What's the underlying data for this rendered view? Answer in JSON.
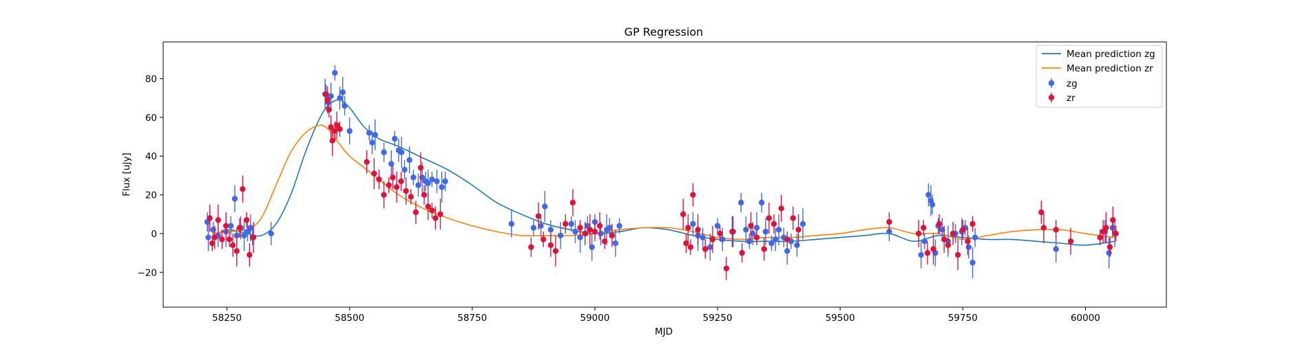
{
  "chart_data": {
    "type": "scatter",
    "title": "GP Regression",
    "xlabel": "MJD",
    "ylabel": "Flux [uJy]",
    "xlim": [
      58120,
      60165
    ],
    "ylim": [
      -38.0,
      99.0
    ],
    "xticks": [
      58250,
      58500,
      58750,
      59000,
      59250,
      59500,
      59750,
      60000
    ],
    "yticks": [
      -20,
      0,
      20,
      40,
      60,
      80
    ],
    "grid": false,
    "legend_position": "top-right",
    "legend": [
      "Mean prediction zg",
      "Mean prediction zr",
      "zg",
      "zr"
    ],
    "colors": {
      "zg_line": "#1f77b4",
      "zr_line": "#ff7f0e",
      "zg_points": "#4169e1",
      "zr_points": "#dc143c"
    },
    "lines": [
      {
        "name": "Mean prediction zg",
        "color": "#1f77b4",
        "x": [
          58220,
          58250,
          58290,
          58320,
          58350,
          58380,
          58410,
          58440,
          58460,
          58480,
          58500,
          58530,
          58560,
          58600,
          58650,
          58700,
          58750,
          58800,
          58850,
          58900,
          58950,
          59000,
          59050,
          59100,
          59150,
          59200,
          59250,
          59300,
          59350,
          59400,
          59450,
          59500,
          59550,
          59600,
          59650,
          59700,
          59750,
          59800,
          59850,
          59900,
          59950,
          60000,
          60060
        ],
        "y": [
          -2,
          2,
          0,
          -1,
          5,
          20,
          42,
          60,
          67,
          69,
          65,
          55,
          49,
          45,
          39,
          33,
          25,
          16,
          10,
          5,
          2,
          0,
          1,
          3,
          2,
          -1,
          -3,
          -4,
          -4,
          -4,
          -3,
          -2,
          -1,
          0,
          -4,
          -1,
          -2,
          -3,
          -3,
          -4,
          -5,
          -6,
          -4
        ]
      },
      {
        "name": "Mean prediction zr",
        "color": "#ff7f0e",
        "x": [
          58220,
          58250,
          58290,
          58320,
          58350,
          58380,
          58410,
          58440,
          58460,
          58480,
          58500,
          58530,
          58560,
          58600,
          58650,
          58700,
          58750,
          58800,
          58850,
          58900,
          58950,
          59000,
          59050,
          59100,
          59150,
          59200,
          59250,
          59300,
          59350,
          59400,
          59450,
          59500,
          59550,
          59600,
          59650,
          59700,
          59750,
          59800,
          59850,
          59900,
          59950,
          60000,
          60060
        ],
        "y": [
          0,
          1,
          2,
          8,
          25,
          42,
          52,
          56,
          53,
          46,
          40,
          34,
          28,
          20,
          13,
          8,
          4,
          1,
          -1,
          -1,
          -1,
          0,
          2,
          3,
          3,
          1,
          -2,
          -3,
          -2,
          -2,
          -1,
          0,
          2,
          3,
          0,
          0,
          -3,
          -1,
          1,
          2,
          2,
          0,
          -2
        ]
      }
    ],
    "series": [
      {
        "name": "zg",
        "color": "#4169e1",
        "x": [
          58210,
          58212,
          58222,
          58232,
          58248,
          58258,
          58266,
          58270,
          58278,
          58285,
          58292,
          58298,
          58302,
          58340,
          58450,
          58455,
          58462,
          58470,
          58480,
          58486,
          58490,
          58500,
          58540,
          58546,
          58552,
          58570,
          58585,
          58592,
          58600,
          58606,
          58612,
          58622,
          58630,
          58640,
          58648,
          58655,
          58660,
          58668,
          58678,
          58688,
          58695,
          58830,
          58875,
          58890,
          58898,
          58910,
          58930,
          58952,
          58960,
          58970,
          58985,
          58994,
          59000,
          59012,
          59024,
          59030,
          59042,
          59050,
          59200,
          59210,
          59220,
          59235,
          59250,
          59260,
          59282,
          59298,
          59308,
          59315,
          59322,
          59330,
          59340,
          59348,
          59360,
          59368,
          59375,
          59385,
          59392,
          59400,
          59412,
          59424,
          59600,
          59665,
          59672,
          59680,
          59685,
          59688,
          59694,
          59700,
          59708,
          59720,
          59735,
          59748,
          59755,
          59762,
          59770,
          59775,
          59940,
          60030,
          60040,
          60048,
          60055,
          60060
        ],
        "y": [
          6,
          -2,
          2,
          -1,
          1,
          4,
          18,
          -1,
          3,
          -1,
          1,
          3,
          -2,
          0,
          72,
          68,
          71,
          83,
          70,
          73,
          66,
          53,
          52,
          47,
          51,
          42,
          36,
          49,
          43,
          42,
          33,
          38,
          29,
          25,
          29,
          27,
          26,
          28,
          27,
          24,
          27,
          5,
          3,
          4,
          14,
          2,
          -1,
          5,
          1,
          -2,
          4,
          -7,
          6,
          0,
          2,
          3,
          -5,
          4,
          5,
          -1,
          -2,
          -7,
          4,
          -3,
          1,
          16,
          2,
          -4,
          0,
          3,
          16,
          1,
          -5,
          -3,
          2,
          -2,
          -9,
          -4,
          -6,
          5,
          1,
          -11,
          -4,
          20,
          17,
          15,
          -10,
          4,
          2,
          -4,
          0,
          1,
          3,
          -7,
          -15,
          -2,
          -8,
          -2,
          1,
          -10,
          3,
          0
        ]
      },
      {
        "name": "zr",
        "color": "#dc143c",
        "x": [
          58215,
          58220,
          58225,
          58232,
          58240,
          58248,
          58255,
          58262,
          58270,
          58276,
          58282,
          58290,
          58296,
          58304,
          58452,
          58455,
          58458,
          58462,
          58465,
          58470,
          58474,
          58480,
          58535,
          58550,
          58560,
          58570,
          58580,
          58588,
          58596,
          58605,
          58615,
          58625,
          58635,
          58645,
          58652,
          58660,
          58668,
          58675,
          58685,
          58870,
          58885,
          58895,
          58910,
          58920,
          58940,
          58955,
          58970,
          58980,
          58990,
          59000,
          59010,
          59020,
          59035,
          59180,
          59186,
          59190,
          59195,
          59200,
          59210,
          59225,
          59240,
          59255,
          59268,
          59280,
          59300,
          59318,
          59330,
          59345,
          59355,
          59365,
          59380,
          59392,
          59404,
          59415,
          59600,
          59660,
          59670,
          59678,
          59690,
          59702,
          59712,
          59720,
          59730,
          59740,
          59750,
          59760,
          59770,
          59910,
          59915,
          59940,
          59970,
          60030,
          60036,
          60042,
          60050,
          60056,
          60062
        ],
        "y": [
          8,
          -5,
          -2,
          7,
          -3,
          4,
          -3,
          -6,
          -9,
          3,
          23,
          7,
          -11,
          -2,
          72,
          69,
          64,
          55,
          48,
          53,
          56,
          54,
          37,
          31,
          28,
          20,
          25,
          29,
          24,
          27,
          22,
          19,
          11,
          34,
          20,
          14,
          12,
          8,
          10,
          -7,
          9,
          -3,
          -6,
          -9,
          5,
          16,
          3,
          0,
          2,
          1,
          4,
          -4,
          -1,
          10,
          -5,
          3,
          -7,
          20,
          2,
          -8,
          -3,
          0,
          -18,
          1,
          -10,
          4,
          -2,
          -8,
          8,
          5,
          13,
          -3,
          8,
          2,
          6,
          0,
          3,
          -10,
          -8,
          5,
          -3,
          -6,
          0,
          -11,
          2,
          -4,
          5,
          11,
          3,
          2,
          -4,
          -2,
          1,
          3,
          -7,
          7,
          0
        ]
      }
    ]
  }
}
